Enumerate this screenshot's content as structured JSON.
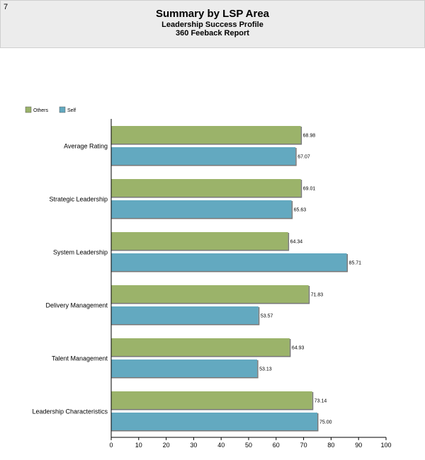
{
  "header": {
    "page_number": "7",
    "title": "Summary by LSP Area",
    "subtitle": "Leadership Success Profile",
    "report_name": "360 Feeback Report"
  },
  "chart_data": {
    "type": "bar",
    "orientation": "horizontal",
    "categories": [
      "Average Rating",
      "Strategic Leadership",
      "System Leadership",
      "Delivery Management",
      "Talent Management",
      "Leadership Characteristics"
    ],
    "series": [
      {
        "name": "Others",
        "color": "#9bb36a",
        "values": [
          68.98,
          69.01,
          64.34,
          71.83,
          64.93,
          73.14
        ],
        "labels": [
          "68.98",
          "69.01",
          "64.34",
          "71.83",
          "64.93",
          "73.14"
        ]
      },
      {
        "name": "Self",
        "color": "#63a9c0",
        "values": [
          67.07,
          65.63,
          85.71,
          53.57,
          53.13,
          75.0
        ],
        "labels": [
          "67.07",
          "65.63",
          "85.71",
          "53.57",
          "53.13",
          "75.00"
        ]
      }
    ],
    "xlim": [
      0,
      100
    ],
    "xticks": [
      "0",
      "10",
      "20",
      "30",
      "40",
      "50",
      "60",
      "70",
      "80",
      "90",
      "100"
    ],
    "legend_position": "top-left",
    "grid": false
  }
}
